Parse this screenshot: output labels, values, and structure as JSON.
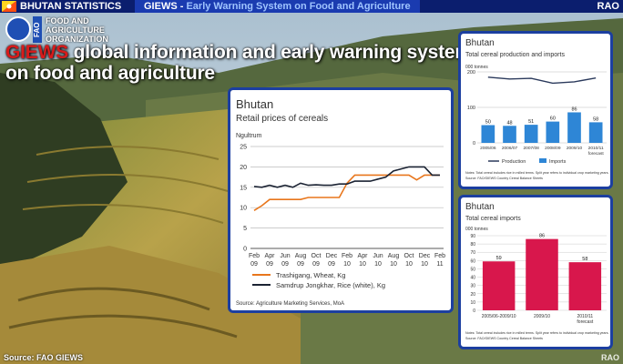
{
  "topbar": {
    "left": "BHUTAN STATISTICS",
    "mid_prefix": "GIEWS -",
    "mid_rest": "Early Warning System on Food and Agriculture",
    "right": "RAO"
  },
  "fao": {
    "line1": "FOOD AND",
    "line2": "AGRICULTURE",
    "line3": "ORGANIZATION",
    "vertical": "FAO"
  },
  "headline": {
    "giews": "GIEWS",
    "rest1": "global information and early warning system",
    "line2": "on food and agriculture"
  },
  "footer": {
    "source": "Source: FAO GIEWS",
    "rao": "RAO"
  },
  "colors": {
    "topbar": "#0b1e6e",
    "panel_border": "#1c3fa0",
    "wheat": "#e8761c",
    "rice": "#1b2333",
    "production": "#2b3a5c",
    "import_bar_blue": "#2e86d6",
    "import_bar_red": "#d8174c"
  },
  "chart_data": [
    {
      "type": "line",
      "title": "Bhutan",
      "subtitle": "Retail prices of cereals",
      "ylabel": "Ngultrum",
      "ylim": [
        0,
        25
      ],
      "yticks": [
        0,
        5,
        10,
        15,
        20,
        25
      ],
      "x_ticks": [
        {
          "m": "Feb",
          "y": "09"
        },
        {
          "m": "Apr",
          "y": "09"
        },
        {
          "m": "Jun",
          "y": "09"
        },
        {
          "m": "Aug",
          "y": "09"
        },
        {
          "m": "Oct",
          "y": "09"
        },
        {
          "m": "Dec",
          "y": "09"
        },
        {
          "m": "Feb",
          "y": "10"
        },
        {
          "m": "Apr",
          "y": "10"
        },
        {
          "m": "Jun",
          "y": "10"
        },
        {
          "m": "Aug",
          "y": "10"
        },
        {
          "m": "Oct",
          "y": "10"
        },
        {
          "m": "Dec",
          "y": "10"
        },
        {
          "m": "Feb",
          "y": "11"
        }
      ],
      "series": [
        {
          "name": "Trashigang, Wheat, Kg",
          "values": [
            9.3,
            10.5,
            12,
            12,
            12,
            12,
            12,
            12.5,
            12.5,
            12.5,
            12.5,
            12.5,
            16,
            18,
            18,
            18,
            18,
            18,
            18,
            18,
            18,
            16.8,
            18,
            18,
            18
          ]
        },
        {
          "name": "Samdrup Jongkhar, Rice (white), Kg",
          "values": [
            15.2,
            15,
            15.5,
            15,
            15.5,
            15,
            16,
            15.5,
            15.6,
            15.5,
            15.5,
            15.8,
            15.8,
            16.5,
            16.5,
            16.5,
            17,
            17.5,
            19,
            19.5,
            20,
            20,
            20,
            18,
            18
          ]
        }
      ],
      "source": "Source: Agriculture Marketing Services, MoA"
    },
    {
      "type": "bar",
      "title": "Bhutan",
      "subtitle": "Total cereal production and imports",
      "ylabel": "000 tonnes",
      "ylim": [
        0,
        200
      ],
      "yticks": [
        0,
        100,
        200
      ],
      "categories": [
        "2005/06",
        "2006/07",
        "2007/08",
        "2008/09",
        "2009/10",
        "2010/11"
      ],
      "category_note": "forecast",
      "series": [
        {
          "name": "Imports",
          "kind": "bar",
          "values": [
            50,
            48,
            51,
            60,
            86,
            58
          ]
        },
        {
          "name": "Production",
          "kind": "line",
          "values": [
            185,
            180,
            182,
            168,
            172,
            183
          ]
        }
      ],
      "notes": "Notes: Total cereal includes rice in milled terms. Split year refers to individual crop marketing years.",
      "source": "Source: FAO/GIEWS Country Cereal Balance Sheets"
    },
    {
      "type": "bar",
      "title": "Bhutan",
      "subtitle": "Total cereal imports",
      "ylabel": "000 tonnes",
      "ylim": [
        0,
        90
      ],
      "yticks": [
        0,
        10,
        20,
        30,
        40,
        50,
        60,
        70,
        80,
        90
      ],
      "categories": [
        "2005/06-2009/10",
        "2009/10",
        "2010/11"
      ],
      "category_note": "forecast",
      "values": [
        59,
        86,
        58
      ],
      "notes": "Notes: Total cereal includes rice in milled terms. Split year refers to individual crop marketing years.",
      "source": "Source: FAO/GIEWS Country Cereal Balance Sheets"
    }
  ]
}
